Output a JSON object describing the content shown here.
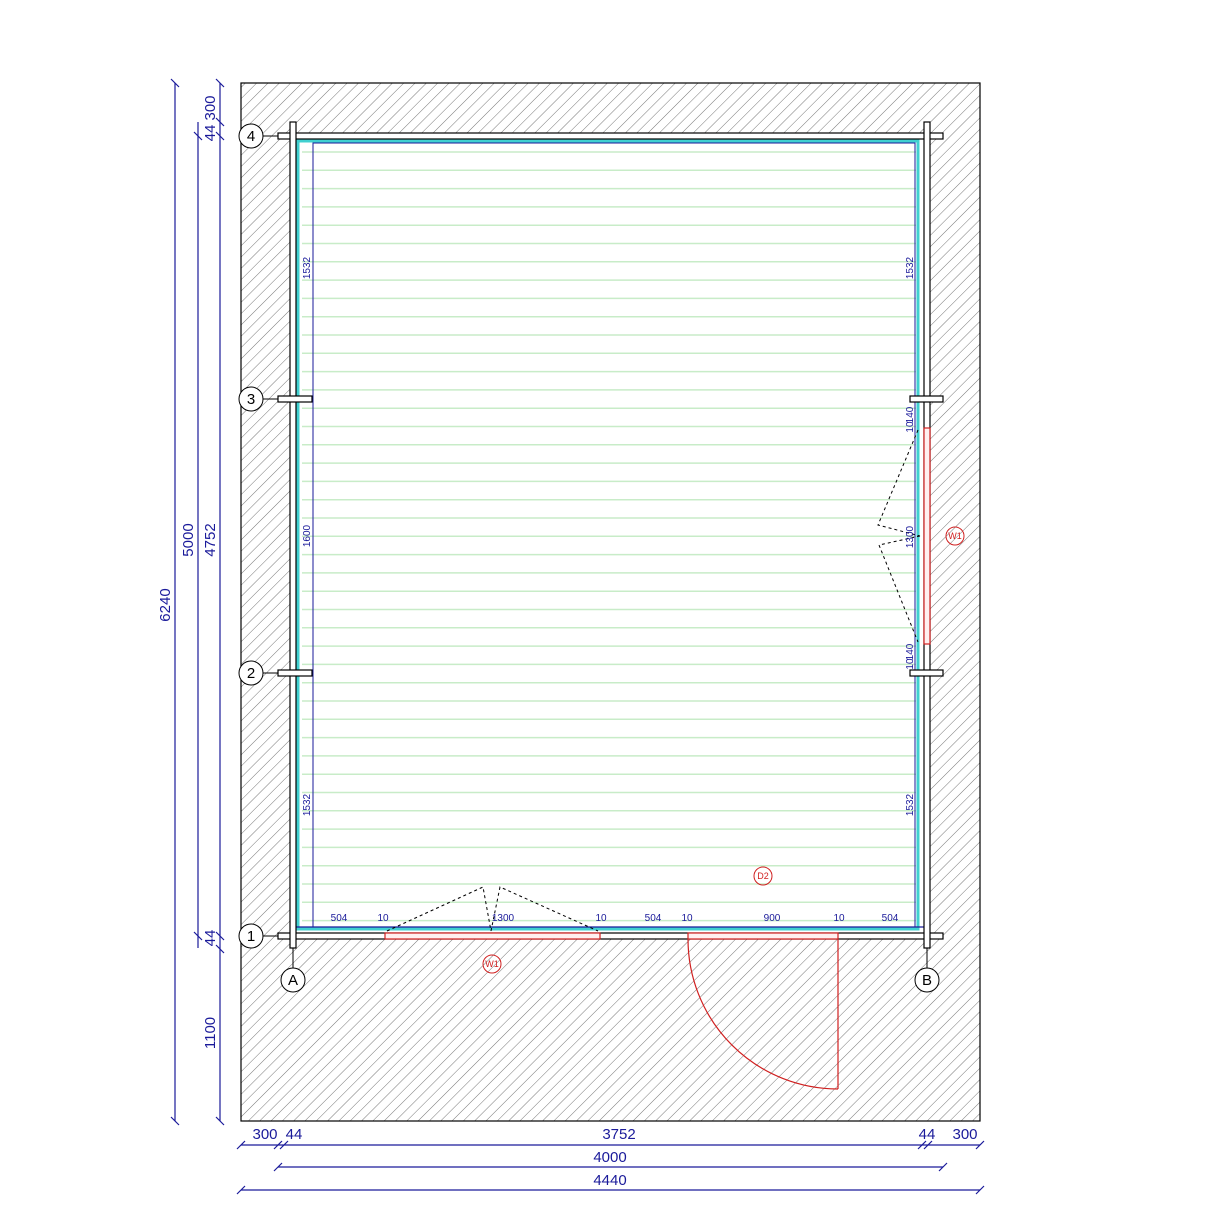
{
  "plan": {
    "grid_rows": [
      "1",
      "2",
      "3",
      "4"
    ],
    "grid_cols": [
      "A",
      "B"
    ],
    "tags": {
      "window_bottom": "W1",
      "window_right": "W1",
      "door": "D2"
    },
    "interior_bottom_dims": [
      "504",
      "10",
      "1300",
      "10",
      "504",
      "10",
      "900",
      "10",
      "504"
    ],
    "interior_left_dims": [
      "1532",
      "1600",
      "1532"
    ],
    "interior_right_dims": [
      "1532",
      "10",
      "140",
      "1300",
      "140",
      "10",
      "1532"
    ],
    "left_dims": {
      "overall": "6240",
      "grid": "5000",
      "chain": [
        "300",
        "44",
        "4752",
        "44",
        "1100"
      ]
    },
    "bottom_dims": {
      "chain": [
        "300",
        "44",
        "3752",
        "44",
        "300"
      ],
      "grid": "4000",
      "overall": "4440"
    }
  },
  "colors": {
    "dimension": "#1a1a9a",
    "opening": "#d02020",
    "lining": "#40d0d0",
    "floor_stripes": "#c8ecc8"
  }
}
